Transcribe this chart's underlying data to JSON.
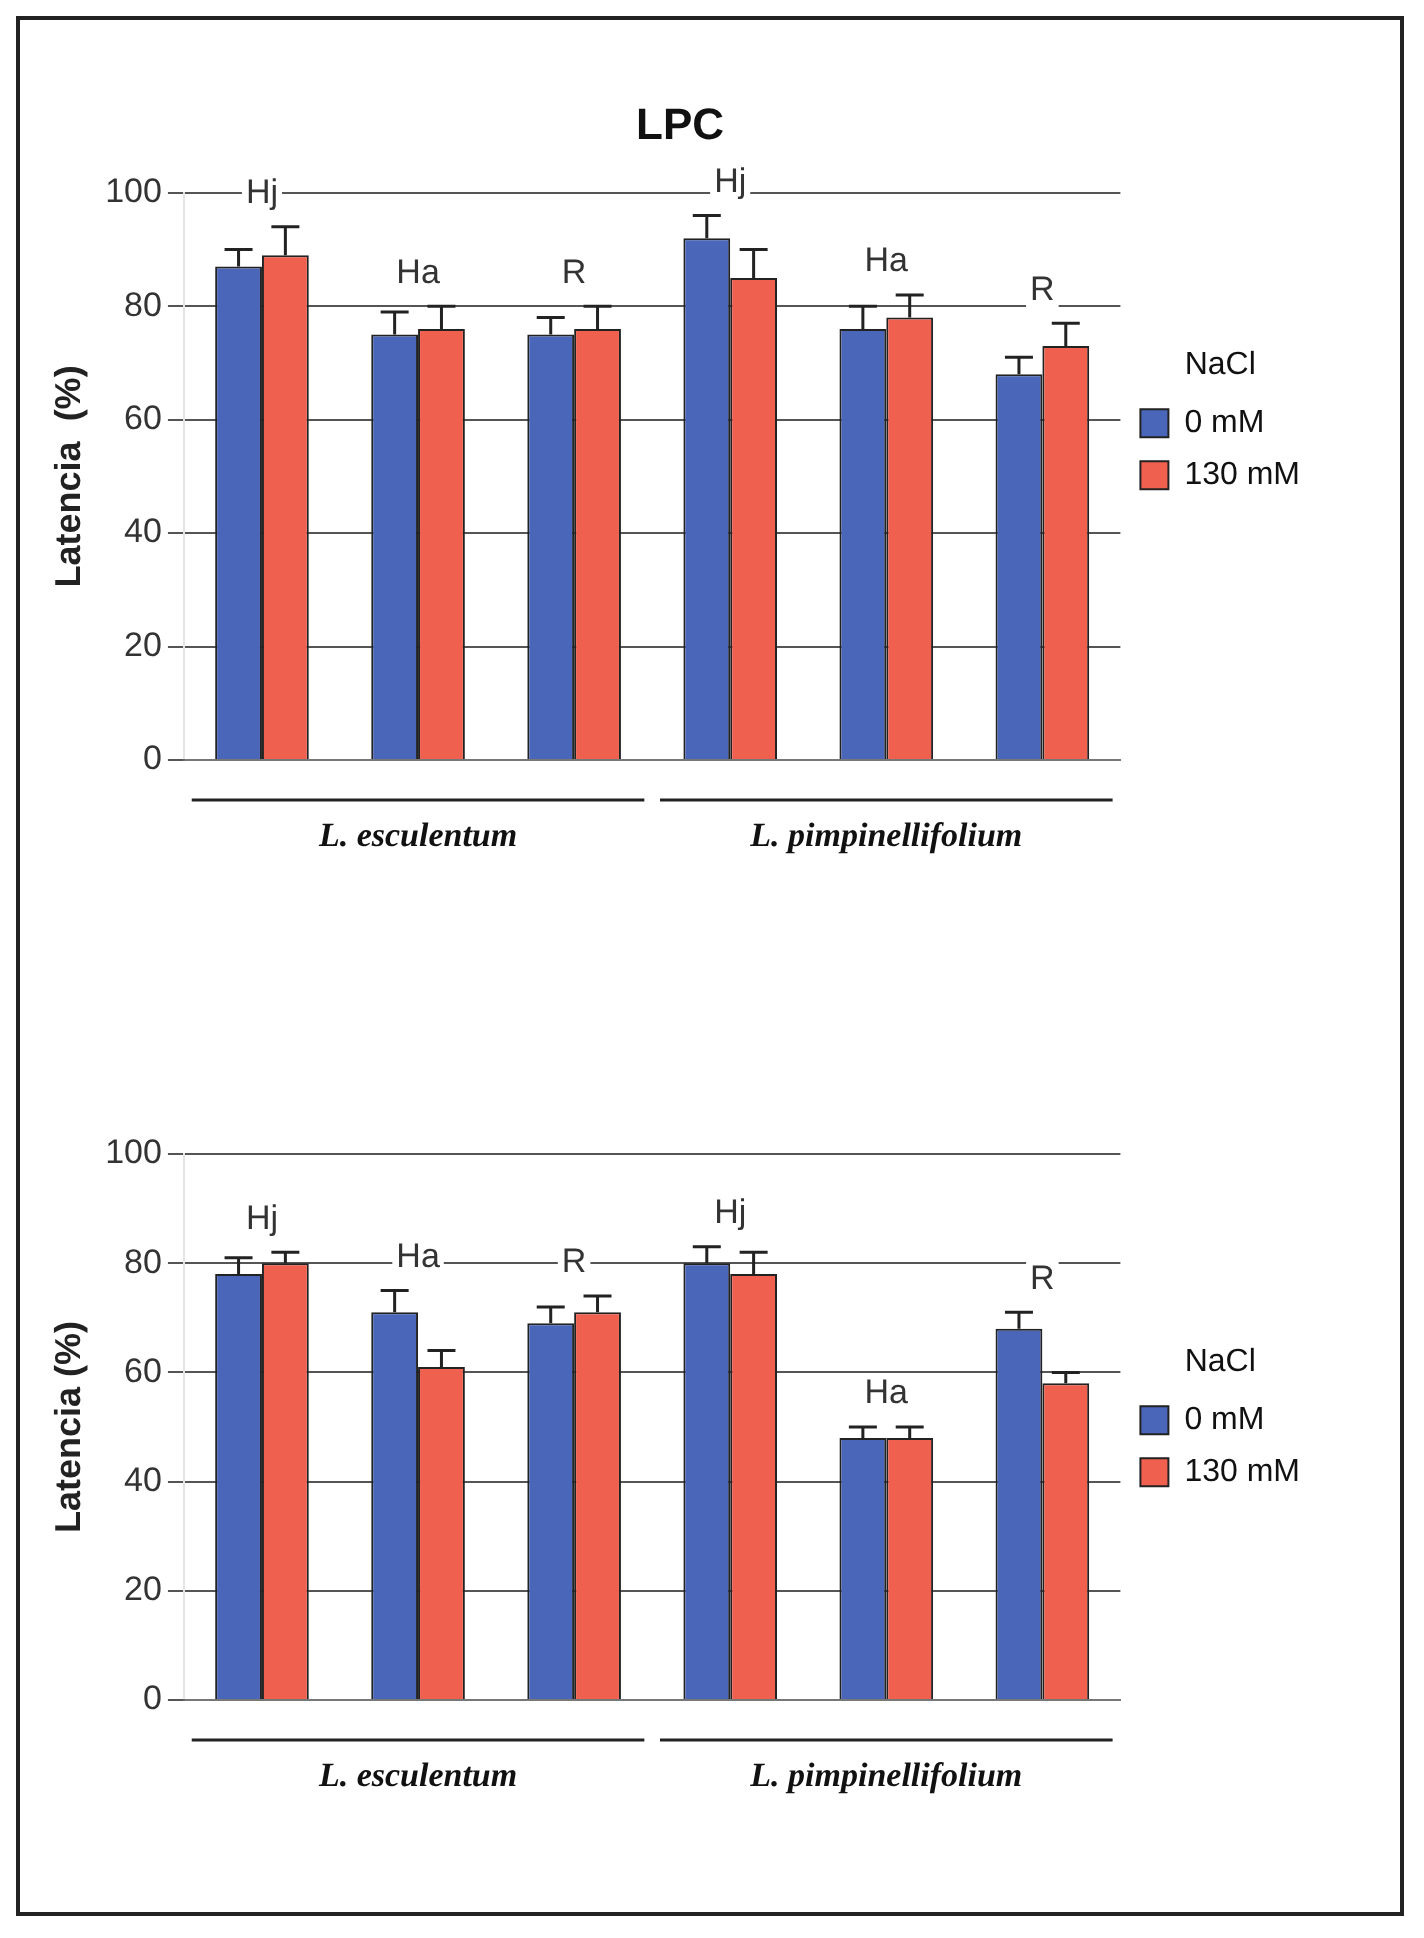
{
  "chart_data": [
    {
      "type": "bar",
      "title": "LPC",
      "ylabel": "Latencia  (%)",
      "legend_title": "NaCl",
      "legend": "right",
      "grid": "y",
      "categories": [
        "Hj",
        "Ha",
        "R",
        "Hj",
        "Ha",
        "R"
      ],
      "series": [
        {
          "name": "0 mM",
          "color": "#4a66b8",
          "values": [
            87,
            75,
            75,
            92,
            76,
            68
          ],
          "errors": [
            [
              87,
              90
            ],
            [
              75,
              79
            ],
            [
              75,
              78
            ],
            [
              92,
              96
            ],
            [
              76,
              80
            ],
            [
              68,
              71
            ]
          ]
        },
        {
          "name": "130 mM",
          "color": "#f0604f",
          "values": [
            89,
            76,
            76,
            85,
            78,
            73
          ],
          "errors": [
            [
              89,
              94
            ],
            [
              76,
              80
            ],
            [
              76,
              80
            ],
            [
              85,
              90
            ],
            [
              78,
              82
            ],
            [
              73,
              77
            ]
          ]
        }
      ],
      "ylim": [
        0,
        100
      ],
      "yticks": [
        0,
        20,
        40,
        60,
        80,
        100
      ],
      "annotations": [
        "L. esculentum",
        "L. pimpinellifolium"
      ]
    },
    {
      "type": "bar",
      "ylabel": "Latencia (%)",
      "legend_title": "NaCl",
      "legend": "right",
      "grid": "y",
      "categories": [
        "Hj",
        "Ha",
        "R",
        "Hj",
        "Ha",
        "R"
      ],
      "series": [
        {
          "name": "0 mM",
          "color": "#4a66b8",
          "values": [
            78,
            71,
            69,
            80,
            48,
            68
          ],
          "errors": [
            [
              78,
              81
            ],
            [
              71,
              75
            ],
            [
              69,
              72
            ],
            [
              80,
              83
            ],
            [
              48,
              50
            ],
            [
              68,
              71
            ]
          ]
        },
        {
          "name": "130 mM",
          "color": "#f0604f",
          "values": [
            80,
            61,
            71,
            78,
            48,
            58
          ],
          "errors": [
            [
              80,
              82
            ],
            [
              61,
              64
            ],
            [
              71,
              74
            ],
            [
              78,
              82
            ],
            [
              48,
              50
            ],
            [
              58,
              60
            ]
          ]
        }
      ],
      "ylim": [
        0,
        100
      ],
      "yticks": [
        0,
        20,
        40,
        60,
        80,
        100
      ],
      "annotations": [
        "L. esculentum",
        "L. pimpinellifolium"
      ]
    }
  ]
}
